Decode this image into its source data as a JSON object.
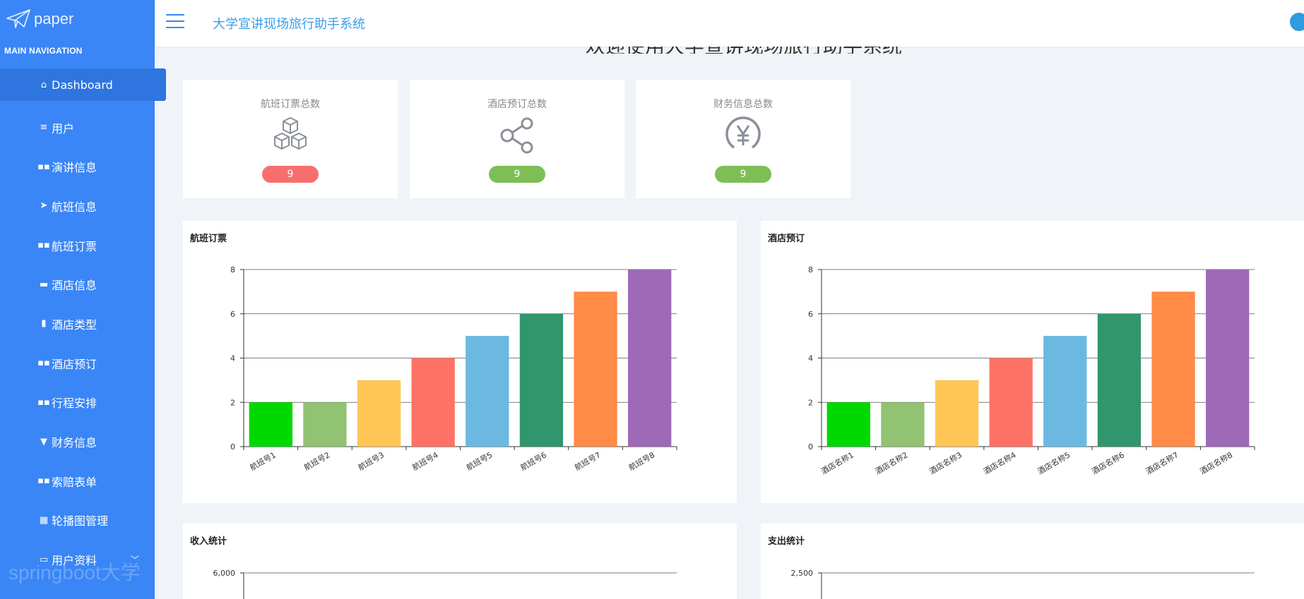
{
  "sidebar": {
    "logo_text": "paper",
    "heading": "MAIN NAVIGATION",
    "items": [
      {
        "label": "Dashboard",
        "icon": "home-icon"
      },
      {
        "label": "用户",
        "icon": "list-icon"
      },
      {
        "label": "演讲信息",
        "icon": "grid-icon"
      },
      {
        "label": "航班信息",
        "icon": "send-icon"
      },
      {
        "label": "航班订票",
        "icon": "grid-icon"
      },
      {
        "label": "酒店信息",
        "icon": "bed-icon"
      },
      {
        "label": "酒店类型",
        "icon": "bar-chart-icon"
      },
      {
        "label": "酒店预订",
        "icon": "grid-icon"
      },
      {
        "label": "行程安排",
        "icon": "grid-icon"
      },
      {
        "label": "财务信息",
        "icon": "cup-icon"
      },
      {
        "label": "索赔表单",
        "icon": "grid-icon"
      },
      {
        "label": "轮播图管理",
        "icon": "table-icon"
      },
      {
        "label": "用户资料",
        "icon": "card-icon"
      }
    ],
    "watermark": "springboot大学"
  },
  "topbar": {
    "title": "大学宣讲现场旅行助手系统"
  },
  "page_heading": "欢迎使用大学宣讲现场旅行助手系统",
  "stats": [
    {
      "title": "航班订票总数",
      "value": "9",
      "color": "#f86e6e",
      "icon": "cubes-icon"
    },
    {
      "title": "酒店预订总数",
      "value": "9",
      "color": "#7dbe56",
      "icon": "share-icon"
    },
    {
      "title": "财务信息总数",
      "value": "9",
      "color": "#7dbe56",
      "icon": "yen-icon"
    }
  ],
  "chart_data": [
    {
      "type": "bar",
      "title": "航班订票",
      "categories": [
        "航班号1",
        "航班号2",
        "航班号3",
        "航班号4",
        "航班号5",
        "航班号6",
        "航班号7",
        "航班号8"
      ],
      "values": [
        2,
        2,
        3,
        4,
        5,
        6,
        7,
        8
      ],
      "yticks": [
        "0",
        "2",
        "4",
        "6",
        "8"
      ],
      "ylim": [
        0,
        8
      ],
      "colors": [
        "#00d900",
        "#91c372",
        "#ffc655",
        "#fe7266",
        "#6bb9e0",
        "#31956e",
        "#ff8b46",
        "#9e69b7"
      ]
    },
    {
      "type": "bar",
      "title": "酒店预订",
      "categories": [
        "酒店名称1",
        "酒店名称2",
        "酒店名称3",
        "酒店名称4",
        "酒店名称5",
        "酒店名称6",
        "酒店名称7",
        "酒店名称8"
      ],
      "values": [
        2,
        2,
        3,
        4,
        5,
        6,
        7,
        8
      ],
      "yticks": [
        "0",
        "2",
        "4",
        "6",
        "8"
      ],
      "ylim": [
        0,
        8
      ],
      "colors": [
        "#00d900",
        "#91c372",
        "#ffc655",
        "#fe7266",
        "#6bb9e0",
        "#31956e",
        "#ff8b46",
        "#9e69b7"
      ]
    },
    {
      "type": "bar",
      "title": "收入统计",
      "yticks": [
        "6,000"
      ],
      "ylim": [
        0,
        6000
      ]
    },
    {
      "type": "bar",
      "title": "支出统计",
      "yticks": [
        "2,500"
      ],
      "ylim": [
        0,
        2500
      ]
    }
  ]
}
